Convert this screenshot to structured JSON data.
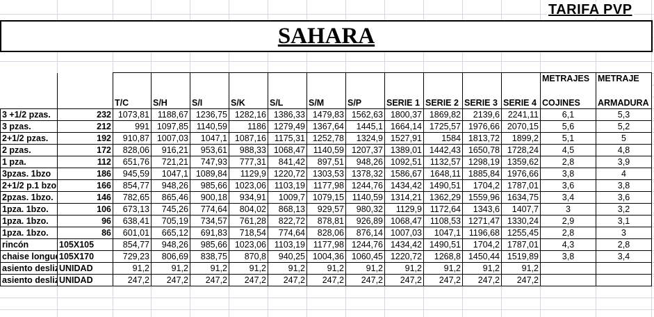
{
  "header": {
    "tarifa": "TARIFA PVP",
    "title": "SAHARA"
  },
  "columns": [
    "T/C",
    "S/H",
    "S/I",
    "S/K",
    "S/L",
    "S/M",
    "S/P",
    "SERIE 1",
    "SERIE 2",
    "SERIE 3",
    "SERIE 4"
  ],
  "metrajes_cojines": [
    "METRAJES",
    "COJINES"
  ],
  "metraje_armadura": [
    "METRAJE",
    "ARMADURA"
  ],
  "rows": [
    {
      "name": "3 +1/2 pzas.",
      "code": "232",
      "prices": [
        "1073,81",
        "1188,67",
        "1236,75",
        "1282,16",
        "1386,33",
        "1479,83",
        "1562,63",
        "1800,37",
        "1869,82",
        "2139,6",
        "2241,11"
      ],
      "cojines": "6,1",
      "armadura": "5,3"
    },
    {
      "name": "3 pzas.",
      "code": "212",
      "prices": [
        "991",
        "1097,85",
        "1140,59",
        "1186",
        "1279,49",
        "1367,64",
        "1445,1",
        "1664,14",
        "1725,57",
        "1976,66",
        "2070,15"
      ],
      "cojines": "5,6",
      "armadura": "5,2"
    },
    {
      "name": "2+1/2 pzas.",
      "code": "192",
      "prices": [
        "910,87",
        "1007,03",
        "1047,1",
        "1087,16",
        "1175,31",
        "1252,78",
        "1324,9",
        "1527,91",
        "1584",
        "1813,72",
        "1899,2"
      ],
      "cojines": "5,1",
      "armadura": "5"
    },
    {
      "name": "2 pzas.",
      "code": "172",
      "prices": [
        "828,06",
        "916,21",
        "953,61",
        "988,33",
        "1068,47",
        "1140,59",
        "1207,37",
        "1389,01",
        "1442,43",
        "1650,78",
        "1728,24"
      ],
      "cojines": "4,5",
      "armadura": "4,8"
    },
    {
      "name": "1 pza.",
      "code": "112",
      "prices": [
        "651,76",
        "721,21",
        "747,93",
        "777,31",
        "841,42",
        "897,51",
        "948,26",
        "1092,51",
        "1132,57",
        "1298,19",
        "1359,62"
      ],
      "cojines": "2,8",
      "armadura": "3,9"
    },
    {
      "name": "3pzas. 1bzo",
      "code": "186",
      "prices": [
        "945,59",
        "1047,1",
        "1089,84",
        "1129,9",
        "1220,72",
        "1303,53",
        "1378,32",
        "1586,67",
        "1648,11",
        "1885,84",
        "1976,66"
      ],
      "cojines": "3,8",
      "armadura": "4"
    },
    {
      "name": "2+1/2 p.1 bzo",
      "code": "166",
      "prices": [
        "854,77",
        "948,26",
        "985,66",
        "1023,06",
        "1103,19",
        "1177,98",
        "1244,76",
        "1434,42",
        "1490,51",
        "1704,2",
        "1787,01"
      ],
      "cojines": "3,6",
      "armadura": "3,8"
    },
    {
      "name": "2pzas. 1bzo.",
      "code": "146",
      "prices": [
        "782,65",
        "865,46",
        "900,18",
        "934,91",
        "1009,7",
        "1079,15",
        "1140,59",
        "1314,21",
        "1362,29",
        "1559,96",
        "1634,75"
      ],
      "cojines": "3,4",
      "armadura": "3,6"
    },
    {
      "name": "1pza. 1bzo.",
      "code": "106",
      "prices": [
        "673,13",
        "745,26",
        "774,64",
        "804,02",
        "868,13",
        "929,57",
        "980,32",
        "1129,9",
        "1172,64",
        "1343,6",
        "1407,7"
      ],
      "cojines": "3",
      "armadura": "3,2"
    },
    {
      "name": "1pza. 1bzo.",
      "code": "96",
      "prices": [
        "638,41",
        "705,19",
        "734,57",
        "761,28",
        "822,72",
        "878,81",
        "926,89",
        "1068,47",
        "1108,53",
        "1271,47",
        "1330,24"
      ],
      "cojines": "2,9",
      "armadura": "3,1"
    },
    {
      "name": "1pza. 1bzo.",
      "code": "86",
      "prices": [
        "601,01",
        "665,12",
        "691,83",
        "718,54",
        "774,64",
        "828,06",
        "876,14",
        "1007,03",
        "1047,1",
        "1196,68",
        "1255,45"
      ],
      "cojines": "2,8",
      "armadura": "3"
    },
    {
      "name": "rincón",
      "code": "105X105",
      "prices": [
        "854,77",
        "948,26",
        "985,66",
        "1023,06",
        "1103,19",
        "1177,98",
        "1244,76",
        "1434,42",
        "1490,51",
        "1704,2",
        "1787,01"
      ],
      "cojines": "4,3",
      "armadura": "2,8"
    },
    {
      "name": "chaise longue",
      "code": "105X170",
      "prices": [
        "729,23",
        "806,69",
        "838,75",
        "870,8",
        "940,25",
        "1004,36",
        "1060,45",
        "1220,72",
        "1268,8",
        "1450,44",
        "1519,89"
      ],
      "cojines": "3,8",
      "armadura": "3,4"
    },
    {
      "name": "asiento deslizante",
      "code": "UNIDAD",
      "prices": [
        "91,2",
        "91,2",
        "91,2",
        "91,2",
        "91,2",
        "91,2",
        "91,2",
        "91,2",
        "91,2",
        "91,2",
        "91,2"
      ],
      "cojines": "",
      "armadura": ""
    },
    {
      "name": "asiento deslizante",
      "code": "UNIDAD",
      "prices": [
        "247,2",
        "247,2",
        "247,2",
        "247,2",
        "247,2",
        "247,2",
        "247,2",
        "247,2",
        "247,2",
        "247,2",
        "247,2"
      ],
      "cojines": "",
      "armadura": ""
    }
  ]
}
